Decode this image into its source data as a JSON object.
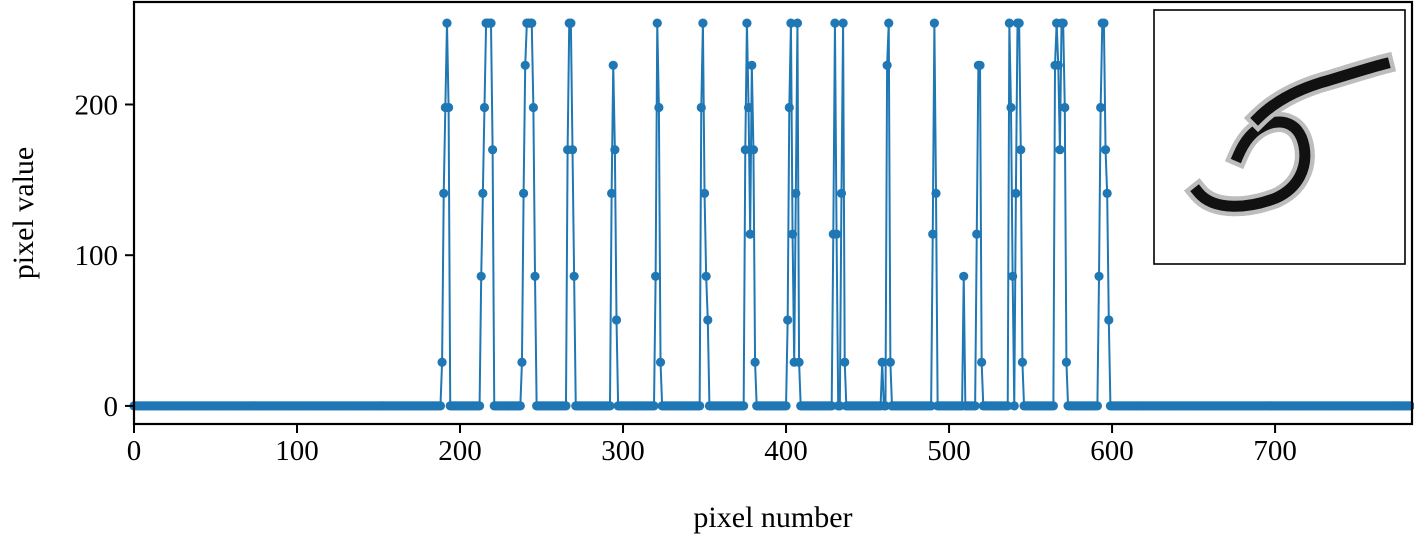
{
  "chart_data": {
    "type": "line",
    "title": "",
    "xlabel": "pixel number",
    "ylabel": "pixel value",
    "xlim": [
      0,
      784
    ],
    "ylim": [
      -12,
      268
    ],
    "xticks": [
      0,
      100,
      200,
      300,
      400,
      500,
      600,
      700
    ],
    "yticks": [
      0,
      100,
      200
    ],
    "grid": false,
    "legend": "none",
    "inset": "handwritten digit image (28x28 grayscale) shown in top-right inset",
    "series": [
      {
        "color": "#1f77b4",
        "marker": "circle",
        "n_points": 784,
        "baseline": 0,
        "nonzero": [
          [
            189,
            29
          ],
          [
            190,
            141
          ],
          [
            191,
            198
          ],
          [
            192,
            254
          ],
          [
            193,
            198
          ],
          [
            213,
            86
          ],
          [
            214,
            141
          ],
          [
            215,
            198
          ],
          [
            216,
            254
          ],
          [
            217,
            254
          ],
          [
            218,
            254
          ],
          [
            219,
            254
          ],
          [
            220,
            170
          ],
          [
            238,
            29
          ],
          [
            239,
            141
          ],
          [
            240,
            226
          ],
          [
            241,
            254
          ],
          [
            242,
            254
          ],
          [
            243,
            254
          ],
          [
            244,
            254
          ],
          [
            245,
            198
          ],
          [
            246,
            86
          ],
          [
            266,
            170
          ],
          [
            267,
            254
          ],
          [
            268,
            254
          ],
          [
            269,
            170
          ],
          [
            270,
            86
          ],
          [
            293,
            141
          ],
          [
            294,
            226
          ],
          [
            295,
            170
          ],
          [
            296,
            57
          ],
          [
            320,
            86
          ],
          [
            321,
            254
          ],
          [
            322,
            198
          ],
          [
            323,
            29
          ],
          [
            348,
            198
          ],
          [
            349,
            254
          ],
          [
            350,
            141
          ],
          [
            351,
            86
          ],
          [
            352,
            57
          ],
          [
            375,
            170
          ],
          [
            376,
            254
          ],
          [
            377,
            198
          ],
          [
            378,
            114
          ],
          [
            379,
            226
          ],
          [
            380,
            170
          ],
          [
            381,
            29
          ],
          [
            401,
            57
          ],
          [
            402,
            198
          ],
          [
            403,
            254
          ],
          [
            404,
            114
          ],
          [
            405,
            29
          ],
          [
            406,
            141
          ],
          [
            407,
            254
          ],
          [
            408,
            29
          ],
          [
            429,
            114
          ],
          [
            430,
            254
          ],
          [
            431,
            114
          ],
          [
            434,
            141
          ],
          [
            435,
            254
          ],
          [
            436,
            29
          ],
          [
            459,
            29
          ],
          [
            462,
            226
          ],
          [
            463,
            254
          ],
          [
            464,
            29
          ],
          [
            490,
            114
          ],
          [
            491,
            254
          ],
          [
            492,
            141
          ],
          [
            509,
            86
          ],
          [
            517,
            114
          ],
          [
            518,
            226
          ],
          [
            519,
            226
          ],
          [
            520,
            29
          ],
          [
            537,
            254
          ],
          [
            538,
            198
          ],
          [
            539,
            86
          ],
          [
            541,
            141
          ],
          [
            542,
            254
          ],
          [
            543,
            254
          ],
          [
            544,
            170
          ],
          [
            545,
            29
          ],
          [
            565,
            226
          ],
          [
            566,
            254
          ],
          [
            567,
            226
          ],
          [
            568,
            170
          ],
          [
            569,
            254
          ],
          [
            570,
            254
          ],
          [
            571,
            198
          ],
          [
            572,
            29
          ],
          [
            592,
            86
          ],
          [
            593,
            198
          ],
          [
            594,
            254
          ],
          [
            595,
            254
          ],
          [
            596,
            170
          ],
          [
            597,
            141
          ],
          [
            598,
            57
          ]
        ]
      }
    ]
  }
}
